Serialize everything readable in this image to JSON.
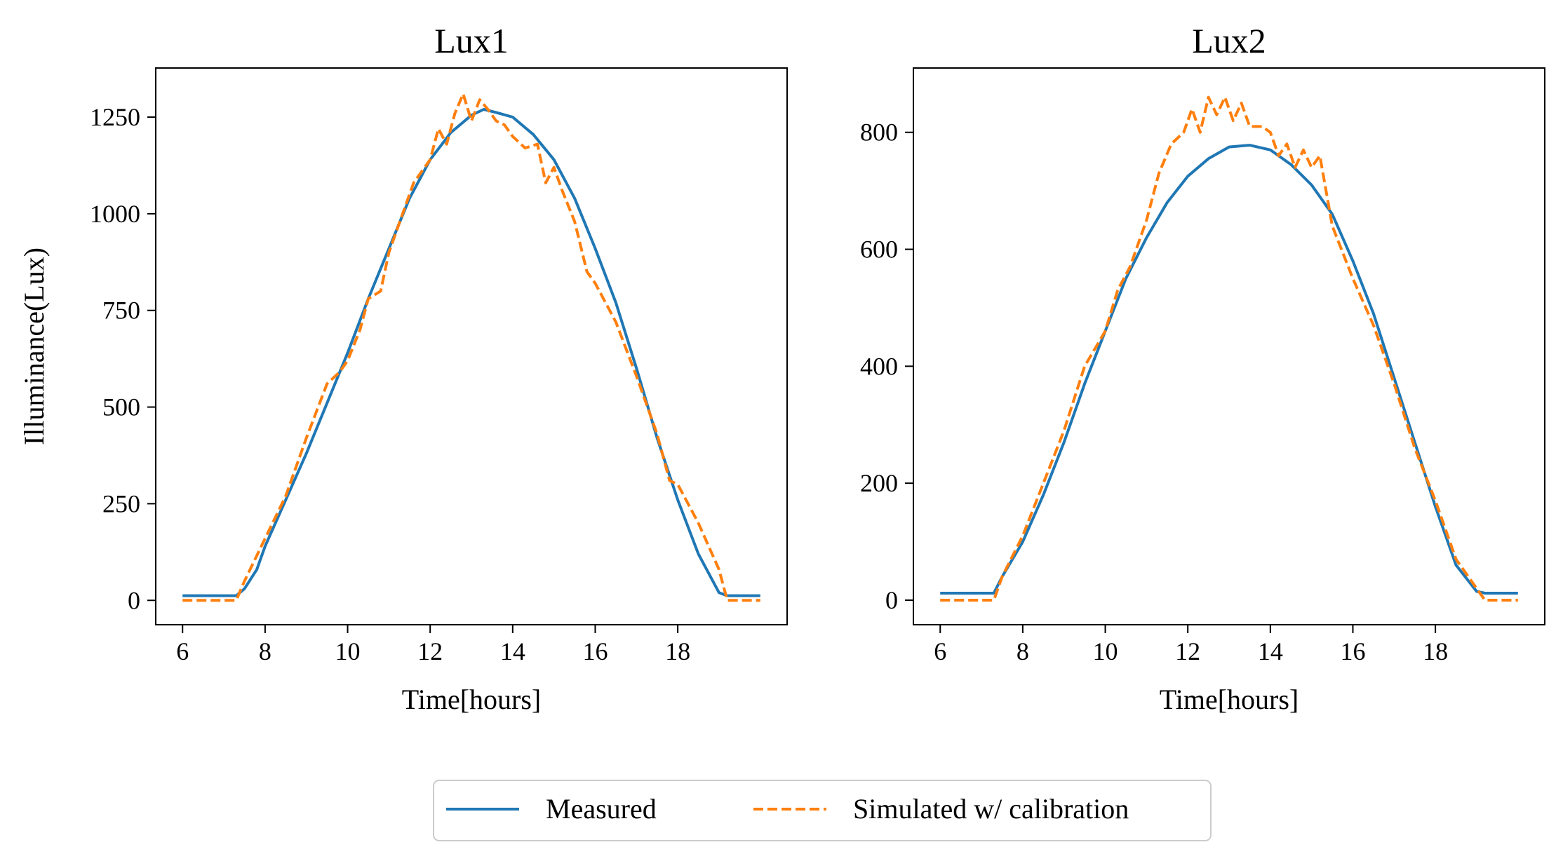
{
  "legend": {
    "entries": [
      {
        "label": "Measured",
        "color": "#1f77b4",
        "style": "solid"
      },
      {
        "label": "Simulated w/ calibration",
        "color": "#ff7f0e",
        "style": "dashed"
      }
    ],
    "placement": "bottom-center"
  },
  "chart_data": [
    {
      "type": "line",
      "title": "Lux1",
      "xlabel": "Time[hours]",
      "ylabel": "Illuminance(Lux)",
      "xlim": [
        5.35,
        20.65
      ],
      "ylim": [
        -63,
        1377
      ],
      "xticks": [
        6,
        8,
        10,
        12,
        14,
        16,
        18
      ],
      "yticks": [
        0,
        250,
        500,
        750,
        1000,
        1250
      ],
      "grid": false,
      "series": [
        {
          "name": "Measured",
          "color": "#1f77b4",
          "style": "solid",
          "points": [
            [
              6,
              12
            ],
            [
              7.3,
              12
            ],
            [
              7.5,
              30
            ],
            [
              7.8,
              80
            ],
            [
              8,
              140
            ],
            [
              8.5,
              260
            ],
            [
              9,
              380
            ],
            [
              9.5,
              510
            ],
            [
              10,
              640
            ],
            [
              10.5,
              780
            ],
            [
              11,
              910
            ],
            [
              11.5,
              1040
            ],
            [
              12,
              1140
            ],
            [
              12.5,
              1210
            ],
            [
              13,
              1255
            ],
            [
              13.3,
              1270
            ],
            [
              13.6,
              1262
            ],
            [
              14,
              1250
            ],
            [
              14.5,
              1205
            ],
            [
              15,
              1140
            ],
            [
              15.5,
              1040
            ],
            [
              16,
              910
            ],
            [
              16.5,
              770
            ],
            [
              17,
              600
            ],
            [
              17.5,
              420
            ],
            [
              18,
              260
            ],
            [
              18.5,
              120
            ],
            [
              19,
              20
            ],
            [
              19.2,
              12
            ],
            [
              20,
              12
            ]
          ]
        },
        {
          "name": "Simulated w/ calibration",
          "color": "#ff7f0e",
          "style": "dashed",
          "points": [
            [
              6,
              0
            ],
            [
              7.3,
              0
            ],
            [
              7.5,
              50
            ],
            [
              8,
              160
            ],
            [
              8.5,
              270
            ],
            [
              9,
              420
            ],
            [
              9.5,
              560
            ],
            [
              9.8,
              590
            ],
            [
              10,
              620
            ],
            [
              10.3,
              700
            ],
            [
              10.5,
              780
            ],
            [
              10.8,
              800
            ],
            [
              11,
              900
            ],
            [
              11.3,
              990
            ],
            [
              11.6,
              1080
            ],
            [
              12,
              1140
            ],
            [
              12.2,
              1220
            ],
            [
              12.4,
              1180
            ],
            [
              12.6,
              1260
            ],
            [
              12.8,
              1310
            ],
            [
              13,
              1240
            ],
            [
              13.2,
              1295
            ],
            [
              13.4,
              1270
            ],
            [
              13.6,
              1240
            ],
            [
              13.8,
              1230
            ],
            [
              14,
              1200
            ],
            [
              14.3,
              1170
            ],
            [
              14.6,
              1180
            ],
            [
              14.8,
              1080
            ],
            [
              15,
              1120
            ],
            [
              15.2,
              1060
            ],
            [
              15.5,
              980
            ],
            [
              15.8,
              850
            ],
            [
              16,
              820
            ],
            [
              16.5,
              720
            ],
            [
              17,
              580
            ],
            [
              17.5,
              430
            ],
            [
              17.8,
              310
            ],
            [
              18,
              300
            ],
            [
              18.5,
              200
            ],
            [
              19,
              80
            ],
            [
              19.2,
              0
            ],
            [
              20,
              0
            ]
          ]
        }
      ]
    },
    {
      "type": "line",
      "title": "Lux2",
      "xlabel": "Time[hours]",
      "ylabel": "",
      "xlim": [
        5.35,
        20.65
      ],
      "ylim": [
        -42,
        910
      ],
      "xticks": [
        6,
        8,
        10,
        12,
        14,
        16,
        18
      ],
      "yticks": [
        0,
        200,
        400,
        600,
        800
      ],
      "grid": false,
      "series": [
        {
          "name": "Measured",
          "color": "#1f77b4",
          "style": "solid",
          "points": [
            [
              6,
              12
            ],
            [
              7.3,
              12
            ],
            [
              7.5,
              40
            ],
            [
              8,
              100
            ],
            [
              8.5,
              180
            ],
            [
              9,
              270
            ],
            [
              9.5,
              370
            ],
            [
              10,
              460
            ],
            [
              10.5,
              550
            ],
            [
              11,
              620
            ],
            [
              11.5,
              680
            ],
            [
              12,
              725
            ],
            [
              12.5,
              755
            ],
            [
              13,
              775
            ],
            [
              13.5,
              778
            ],
            [
              14,
              770
            ],
            [
              14.5,
              745
            ],
            [
              15,
              710
            ],
            [
              15.5,
              660
            ],
            [
              16,
              580
            ],
            [
              16.5,
              490
            ],
            [
              17,
              380
            ],
            [
              17.5,
              270
            ],
            [
              18,
              160
            ],
            [
              18.5,
              60
            ],
            [
              19,
              15
            ],
            [
              19.2,
              12
            ],
            [
              20,
              12
            ]
          ]
        },
        {
          "name": "Simulated w/ calibration",
          "color": "#ff7f0e",
          "style": "dashed",
          "points": [
            [
              6,
              0
            ],
            [
              7.3,
              0
            ],
            [
              7.5,
              40
            ],
            [
              8,
              110
            ],
            [
              8.5,
              200
            ],
            [
              9,
              290
            ],
            [
              9.5,
              400
            ],
            [
              10,
              460
            ],
            [
              10.3,
              530
            ],
            [
              10.6,
              570
            ],
            [
              11,
              650
            ],
            [
              11.3,
              730
            ],
            [
              11.6,
              780
            ],
            [
              11.9,
              800
            ],
            [
              12.1,
              840
            ],
            [
              12.3,
              800
            ],
            [
              12.5,
              860
            ],
            [
              12.7,
              830
            ],
            [
              12.9,
              860
            ],
            [
              13.1,
              820
            ],
            [
              13.3,
              850
            ],
            [
              13.5,
              810
            ],
            [
              13.8,
              810
            ],
            [
              14,
              800
            ],
            [
              14.2,
              760
            ],
            [
              14.4,
              780
            ],
            [
              14.6,
              740
            ],
            [
              14.8,
              770
            ],
            [
              15,
              740
            ],
            [
              15.2,
              760
            ],
            [
              15.5,
              640
            ],
            [
              16,
              550
            ],
            [
              16.5,
              470
            ],
            [
              17,
              370
            ],
            [
              17.5,
              260
            ],
            [
              18,
              170
            ],
            [
              18.5,
              70
            ],
            [
              19,
              20
            ],
            [
              19.2,
              0
            ],
            [
              20,
              0
            ]
          ]
        }
      ]
    }
  ]
}
